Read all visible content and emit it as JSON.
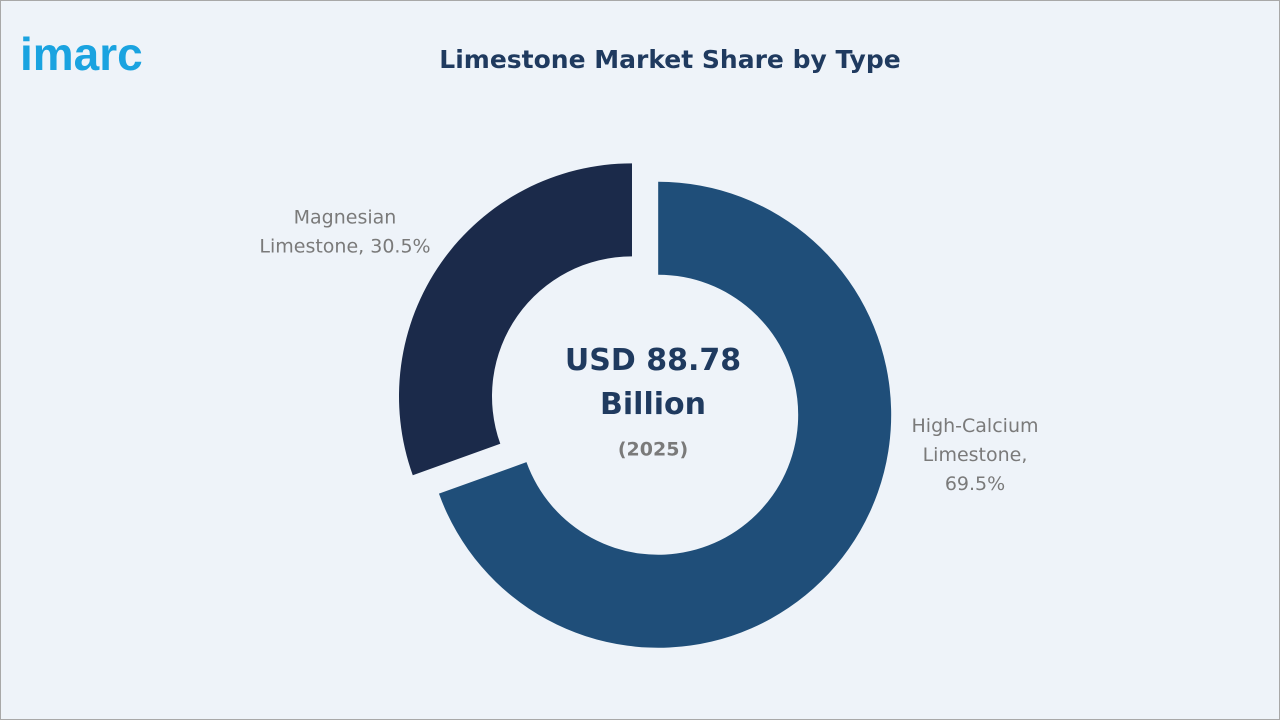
{
  "logo": "imarc",
  "chart_data": {
    "type": "donut",
    "title": "Limestone Market Share by Type",
    "center_label": "USD 88.78 Billion",
    "center_sublabel": "(2025)",
    "categories": [
      "High-Calcium Limestone",
      "Magnesian Limestone"
    ],
    "values": [
      69.5,
      30.5
    ],
    "value_labels": [
      "High-Calcium Limestone, 69.5%",
      "Magnesian Limestone, 30.5%"
    ],
    "colors": [
      "#1f4e79",
      "#1b2a4a"
    ]
  }
}
